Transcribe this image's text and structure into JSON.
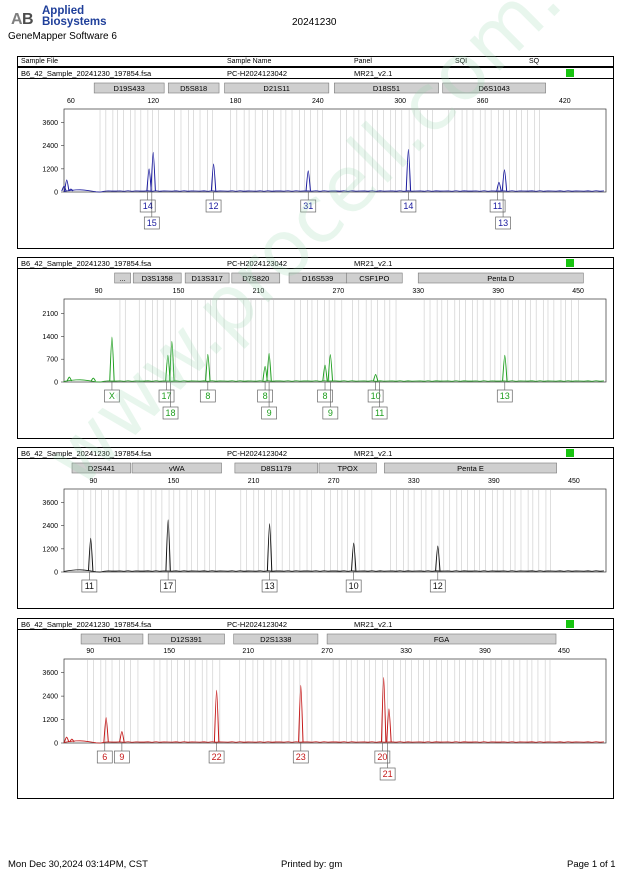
{
  "header": {
    "brand_line1": "Applied",
    "brand_line2": "Biosystems",
    "software": "GeneMapper Software 6",
    "date": "20241230"
  },
  "table_header": [
    "Sample File",
    "Sample Name",
    "Panel",
    "SQI",
    "SQ"
  ],
  "footer": {
    "left": "Mon Dec 30,2024 03:14PM, CST",
    "middle": "Printed by: gm",
    "right": "Page 1 of 1"
  },
  "watermark": "www.procell.com.cn",
  "colors": {
    "quality_ok": "#17c40f",
    "bin_gray": "#c9c9c9"
  },
  "chart_data": [
    {
      "type": "line",
      "panel": {
        "file": "B6_42_Sample_20241230_197854.fsa",
        "name": "PC-H2024123042",
        "kit": "MR21_v2.1"
      },
      "color": "#1a1a9e",
      "xticks": [
        60,
        120,
        180,
        240,
        300,
        360,
        420
      ],
      "xlim": [
        55,
        450
      ],
      "yticks": [
        0,
        1200,
        2400,
        3600
      ],
      "ylim": [
        0,
        4300
      ],
      "loci": [
        {
          "name": "D19S433",
          "from": 77,
          "to": 128
        },
        {
          "name": "D5S818",
          "from": 131,
          "to": 168
        },
        {
          "name": "D21S11",
          "from": 172,
          "to": 248
        },
        {
          "name": "D18S51",
          "from": 252,
          "to": 328
        },
        {
          "name": "D6S1043",
          "from": 331,
          "to": 406
        }
      ],
      "peaks": [
        {
          "x": 55,
          "y": 300
        },
        {
          "x": 57,
          "y": 620
        },
        {
          "x": 60,
          "y": 150
        },
        {
          "x": 117,
          "y": 1200
        },
        {
          "x": 120,
          "y": 2050
        },
        {
          "x": 164,
          "y": 1450
        },
        {
          "x": 233,
          "y": 1100
        },
        {
          "x": 306,
          "y": 2200
        },
        {
          "x": 372,
          "y": 500
        },
        {
          "x": 376,
          "y": 1150
        }
      ],
      "alleles": [
        {
          "x": 116,
          "row": 1,
          "label": "14"
        },
        {
          "x": 119,
          "row": 2,
          "label": "15"
        },
        {
          "x": 164,
          "row": 1,
          "label": "12"
        },
        {
          "x": 233,
          "row": 1,
          "label": "31"
        },
        {
          "x": 306,
          "row": 1,
          "label": "14"
        },
        {
          "x": 371,
          "row": 1,
          "label": "11"
        },
        {
          "x": 375,
          "row": 2,
          "label": "13"
        }
      ]
    },
    {
      "type": "line",
      "panel": {
        "file": "B6_42_Sample_20241230_197854.fsa",
        "name": "PC-H2024123042",
        "kit": "MR21_v2.1"
      },
      "color": "#1e9e1e",
      "xticks": [
        90,
        150,
        210,
        270,
        330,
        390,
        450
      ],
      "xlim": [
        64,
        471
      ],
      "yticks": [
        0,
        700,
        1400,
        2100
      ],
      "ylim": [
        0,
        2550
      ],
      "loci": [
        {
          "name": "...",
          "from": 102,
          "to": 114
        },
        {
          "name": "D3S1358",
          "from": 116,
          "to": 152
        },
        {
          "name": "D13S317",
          "from": 155,
          "to": 188
        },
        {
          "name": "D7S820",
          "from": 190,
          "to": 226
        },
        {
          "name": "D16S539",
          "from": 233,
          "to": 276
        },
        {
          "name": "CSF1PO",
          "from": 276,
          "to": 318
        },
        {
          "name": "Penta D",
          "from": 330,
          "to": 454
        }
      ],
      "peaks": [
        {
          "x": 68,
          "y": 150
        },
        {
          "x": 86,
          "y": 120
        },
        {
          "x": 100,
          "y": 1380
        },
        {
          "x": 142,
          "y": 820
        },
        {
          "x": 145,
          "y": 1250
        },
        {
          "x": 172,
          "y": 850
        },
        {
          "x": 215,
          "y": 480
        },
        {
          "x": 218,
          "y": 880
        },
        {
          "x": 260,
          "y": 520
        },
        {
          "x": 264,
          "y": 840
        },
        {
          "x": 298,
          "y": 230
        },
        {
          "x": 395,
          "y": 820
        }
      ],
      "alleles": [
        {
          "x": 100,
          "row": 1,
          "label": "X"
        },
        {
          "x": 141,
          "row": 1,
          "label": "17"
        },
        {
          "x": 144,
          "row": 2,
          "label": "18"
        },
        {
          "x": 172,
          "row": 1,
          "label": "8"
        },
        {
          "x": 215,
          "row": 1,
          "label": "8"
        },
        {
          "x": 218,
          "row": 2,
          "label": "9"
        },
        {
          "x": 260,
          "row": 1,
          "label": "8"
        },
        {
          "x": 264,
          "row": 2,
          "label": "9"
        },
        {
          "x": 298,
          "row": 1,
          "label": "10"
        },
        {
          "x": 301,
          "row": 2,
          "label": "11"
        },
        {
          "x": 395,
          "row": 1,
          "label": "13"
        }
      ]
    },
    {
      "type": "line",
      "panel": {
        "file": "B6_42_Sample_20241230_197854.fsa",
        "name": "PC-H2024123042",
        "kit": "MR21_v2.1"
      },
      "color": "#111111",
      "xticks": [
        90,
        150,
        210,
        270,
        330,
        390,
        450
      ],
      "xlim": [
        68,
        474
      ],
      "yticks": [
        0,
        1200,
        2400,
        3600
      ],
      "ylim": [
        0,
        4300
      ],
      "loci": [
        {
          "name": "D2S441",
          "from": 74,
          "to": 118
        },
        {
          "name": "vWA",
          "from": 119,
          "to": 186
        },
        {
          "name": "D8S1179",
          "from": 196,
          "to": 258
        },
        {
          "name": "TPOX",
          "from": 259,
          "to": 302
        },
        {
          "name": "Penta E",
          "from": 308,
          "to": 437
        }
      ],
      "peaks": [
        {
          "x": 88,
          "y": 1750
        },
        {
          "x": 146,
          "y": 2700
        },
        {
          "x": 222,
          "y": 2500
        },
        {
          "x": 285,
          "y": 1500
        },
        {
          "x": 348,
          "y": 1350
        }
      ],
      "alleles": [
        {
          "x": 87,
          "row": 1,
          "label": "11"
        },
        {
          "x": 146,
          "row": 1,
          "label": "17"
        },
        {
          "x": 222,
          "row": 1,
          "label": "13"
        },
        {
          "x": 285,
          "row": 1,
          "label": "10"
        },
        {
          "x": 348,
          "row": 1,
          "label": "12"
        }
      ]
    },
    {
      "type": "line",
      "panel": {
        "file": "B6_42_Sample_20241230_197854.fsa",
        "name": "PC-H2024123042",
        "kit": "MR21_v2.1"
      },
      "color": "#c41818",
      "xticks": [
        90,
        150,
        210,
        270,
        330,
        390,
        450
      ],
      "xlim": [
        70,
        482
      ],
      "yticks": [
        0,
        1200,
        2400,
        3600
      ],
      "ylim": [
        0,
        4300
      ],
      "loci": [
        {
          "name": "TH01",
          "from": 83,
          "to": 130
        },
        {
          "name": "D12S391",
          "from": 134,
          "to": 192
        },
        {
          "name": "D2S1338",
          "from": 199,
          "to": 263
        },
        {
          "name": "FGA",
          "from": 270,
          "to": 444
        }
      ],
      "peaks": [
        {
          "x": 72,
          "y": 300
        },
        {
          "x": 76,
          "y": 200
        },
        {
          "x": 102,
          "y": 1300
        },
        {
          "x": 114,
          "y": 580
        },
        {
          "x": 186,
          "y": 2700
        },
        {
          "x": 250,
          "y": 2950
        },
        {
          "x": 313,
          "y": 3350
        },
        {
          "x": 317,
          "y": 1750
        }
      ],
      "alleles": [
        {
          "x": 101,
          "row": 1,
          "label": "6"
        },
        {
          "x": 114,
          "row": 1,
          "label": "9"
        },
        {
          "x": 186,
          "row": 1,
          "label": "22"
        },
        {
          "x": 250,
          "row": 1,
          "label": "23"
        },
        {
          "x": 312,
          "row": 1,
          "label": "20"
        },
        {
          "x": 316,
          "row": 2,
          "label": "21"
        }
      ]
    }
  ]
}
